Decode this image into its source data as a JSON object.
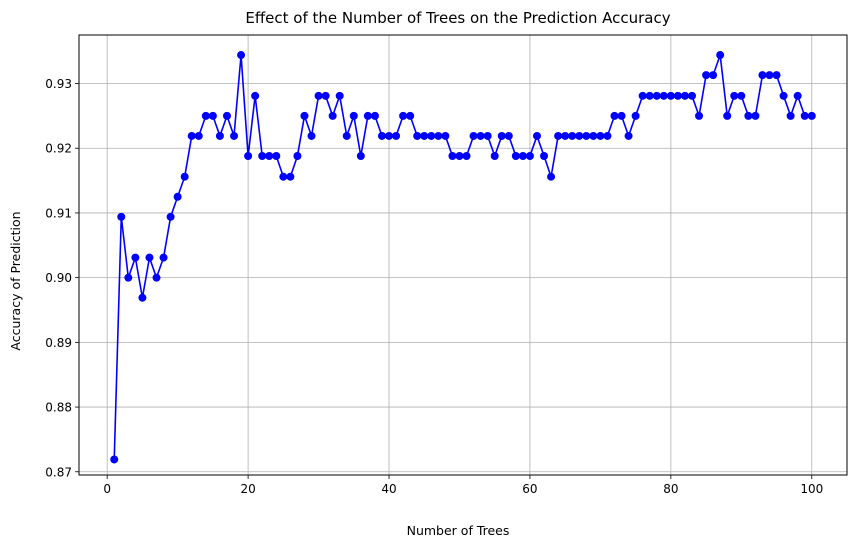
{
  "chart_data": {
    "type": "line",
    "title": "Effect of the Number of Trees on the Prediction Accuracy",
    "xlabel": "Number of Trees",
    "ylabel": "Accuracy of Prediction",
    "xlim": [
      -4,
      105
    ],
    "ylim": [
      0.8695,
      0.9375
    ],
    "xticks": [
      0,
      20,
      40,
      60,
      80,
      100
    ],
    "xtick_labels": [
      "0",
      "20",
      "40",
      "60",
      "80",
      "100"
    ],
    "yticks": [
      0.87,
      0.88,
      0.89,
      0.9,
      0.91,
      0.92,
      0.93
    ],
    "ytick_labels": [
      "0.87",
      "0.88",
      "0.89",
      "0.90",
      "0.91",
      "0.92",
      "0.93"
    ],
    "grid": true,
    "line_color": "#0000ff",
    "marker": "circle",
    "series": [
      {
        "x": [
          1,
          2,
          3,
          4,
          5,
          6,
          7,
          8,
          9,
          10,
          11,
          12,
          13,
          14,
          15,
          16,
          17,
          18,
          19,
          20,
          21,
          22,
          23,
          24,
          25,
          26,
          27,
          28,
          29,
          30,
          31,
          32,
          33,
          34,
          35,
          36,
          37,
          38,
          39,
          40,
          41,
          42,
          43,
          44,
          45,
          46,
          47,
          48,
          49,
          50,
          51,
          52,
          53,
          54,
          55,
          56,
          57,
          58,
          59,
          60,
          61,
          62,
          63,
          64,
          65,
          66,
          67,
          68,
          69,
          70,
          71,
          72,
          73,
          74,
          75,
          76,
          77,
          78,
          79,
          80,
          81,
          82,
          83,
          84,
          85,
          86,
          87,
          88,
          89,
          90,
          91,
          92,
          93,
          94,
          95,
          96,
          97,
          98,
          99,
          100
        ],
        "values": [
          0.8719,
          0.9094,
          0.9,
          0.9031,
          0.8969,
          0.9031,
          0.9,
          0.9031,
          0.9094,
          0.9125,
          0.9156,
          0.9219,
          0.9219,
          0.925,
          0.925,
          0.9219,
          0.925,
          0.9219,
          0.9344,
          0.9188,
          0.9281,
          0.9188,
          0.9188,
          0.9188,
          0.9156,
          0.9156,
          0.9188,
          0.925,
          0.9219,
          0.9281,
          0.9281,
          0.925,
          0.9281,
          0.9219,
          0.925,
          0.9188,
          0.925,
          0.925,
          0.9219,
          0.9219,
          0.9219,
          0.925,
          0.925,
          0.9219,
          0.9219,
          0.9219,
          0.9219,
          0.9219,
          0.9188,
          0.9188,
          0.9188,
          0.9219,
          0.9219,
          0.9219,
          0.9188,
          0.9219,
          0.9219,
          0.9188,
          0.9188,
          0.9188,
          0.9219,
          0.9188,
          0.9156,
          0.9219,
          0.9219,
          0.9219,
          0.9219,
          0.9219,
          0.9219,
          0.9219,
          0.9219,
          0.925,
          0.925,
          0.9219,
          0.925,
          0.9281,
          0.9281,
          0.9281,
          0.9281,
          0.9281,
          0.9281,
          0.9281,
          0.9281,
          0.925,
          0.9313,
          0.9313,
          0.9344,
          0.925,
          0.9281,
          0.9281,
          0.925,
          0.925,
          0.9313,
          0.9313,
          0.9313,
          0.9281,
          0.925,
          0.9281,
          0.925,
          0.925
        ]
      }
    ]
  }
}
